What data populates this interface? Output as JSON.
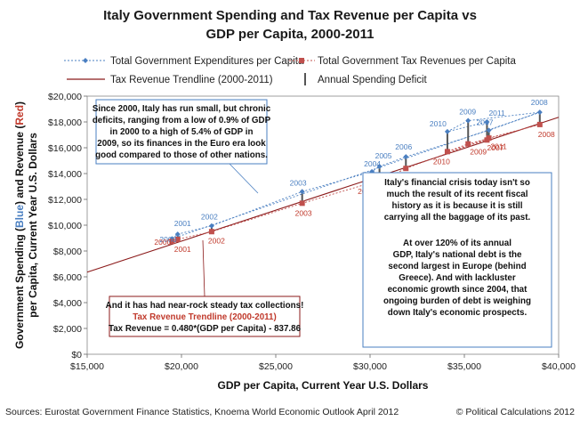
{
  "chart_data": {
    "type": "scatter",
    "title_lines": [
      "Italy Government Spending and Tax Revenue per Capita vs",
      "GDP per Capita, 2000-2011"
    ],
    "xlabel": "GDP per Capita, Current Year U.S. Dollars",
    "ylabel_parts": [
      {
        "text": "Government Spending (",
        "color": "#111111"
      },
      {
        "text": "Blue",
        "color": "#4a7fc1"
      },
      {
        "text": ") and Revenue (",
        "color": "#111111"
      },
      {
        "text": "Red",
        "color": "#c0392b"
      },
      {
        "text": ")",
        "color": "#111111"
      }
    ],
    "ylabel_line2": "per Capita, Current Year U.S. Dollars",
    "xlim": [
      15000,
      40000
    ],
    "ylim": [
      0,
      20000
    ],
    "xticks": [
      15000,
      20000,
      25000,
      30000,
      35000,
      40000
    ],
    "xtick_labels": [
      "$15,000",
      "$20,000",
      "$25,000",
      "$30,000",
      "$35,000",
      "$40,000"
    ],
    "yticks": [
      0,
      2000,
      4000,
      6000,
      8000,
      10000,
      12000,
      14000,
      16000,
      18000,
      20000
    ],
    "ytick_labels": [
      "$0",
      "$2,000",
      "$4,000",
      "$6,000",
      "$8,000",
      "$10,000",
      "$12,000",
      "$14,000",
      "$16,000",
      "$18,000",
      "$20,000"
    ],
    "legend": {
      "expenditures": "Total Government Expenditures per Capita",
      "revenues": "Total Government Tax Revenues per Capita",
      "trendline": "Tax Revenue Trendline (2000-2011)",
      "deficit": "Annual Spending Deficit"
    },
    "colors": {
      "expenditures": "#4a7fc1",
      "revenues": "#c0504d",
      "trendline": "#8b1a1a",
      "deficit": "#555555"
    },
    "series": [
      {
        "name": "Total Government Expenditures per Capita",
        "points": [
          {
            "year": "2000",
            "x": 19500,
            "y": 8950
          },
          {
            "year": "2001",
            "x": 19800,
            "y": 9300
          },
          {
            "year": "2002",
            "x": 21600,
            "y": 9950
          },
          {
            "year": "2003",
            "x": 26400,
            "y": 12600
          },
          {
            "year": "2004",
            "x": 30100,
            "y": 14150
          },
          {
            "year": "2005",
            "x": 30500,
            "y": 14550
          },
          {
            "year": "2006",
            "x": 31900,
            "y": 15300
          },
          {
            "year": "2007",
            "x": 36300,
            "y": 17350
          },
          {
            "year": "2008",
            "x": 39000,
            "y": 18750
          },
          {
            "year": "2009",
            "x": 35200,
            "y": 18100
          },
          {
            "year": "2010",
            "x": 34100,
            "y": 17250
          },
          {
            "year": "2011",
            "x": 36200,
            "y": 18000
          }
        ]
      },
      {
        "name": "Total Government Tax Revenues per Capita",
        "points": [
          {
            "year": "2000",
            "x": 19500,
            "y": 8750
          },
          {
            "year": "2001",
            "x": 19800,
            "y": 8900
          },
          {
            "year": "2002",
            "x": 21600,
            "y": 9500
          },
          {
            "year": "2003",
            "x": 26400,
            "y": 11700
          },
          {
            "year": "2004",
            "x": 30100,
            "y": 13300
          },
          {
            "year": "2005",
            "x": 30500,
            "y": 13400
          },
          {
            "year": "2006",
            "x": 31900,
            "y": 14400
          },
          {
            "year": "2007",
            "x": 36300,
            "y": 16750
          },
          {
            "year": "2008",
            "x": 39000,
            "y": 17800
          },
          {
            "year": "2009",
            "x": 35200,
            "y": 16300
          },
          {
            "year": "2010",
            "x": 34100,
            "y": 15700
          },
          {
            "year": "2011",
            "x": 36200,
            "y": 16600
          }
        ]
      }
    ],
    "trendline": {
      "slope": 0.48,
      "intercept": -837.86,
      "x_range": [
        15000,
        40000
      ]
    },
    "annotations": {
      "box1": [
        "Since 2000, Italy has run small, but chronic",
        "deficits, ranging from a low of 0.9% of GDP",
        "in 2000 to a high of 5.4% of GDP in",
        "2009, so its finances in the Euro era look",
        "good compared to those of other nations."
      ],
      "box2_a": [
        "Italy's financial crisis today isn't so",
        "much the result of its recent fiscal",
        "history as it is because it is still",
        "carrying all the baggage of its past."
      ],
      "box2_b": [
        "At over 120% of its annual",
        "GDP, Italy's national debt is the",
        "second largest in Europe (behind",
        "Greece).  And with lackluster",
        "economic growth since 2004, that",
        "ongoing burden of debt is weighing",
        "down Italy's economic prospects."
      ],
      "box3_line1": "And it has had near-rock steady tax collections!",
      "box3_line2": "Tax Revenue Trendline (2000-2011)",
      "box3_line3": "Tax Revenue = 0.480*(GDP per Capita) - 837.86"
    },
    "grid": false,
    "legend_placement": "top"
  },
  "footer": {
    "sources": "Sources: Eurostat Government Finance Statistics, Knoema World Economic Outlook April 2012",
    "copyright": "© Political Calculations 2012"
  }
}
